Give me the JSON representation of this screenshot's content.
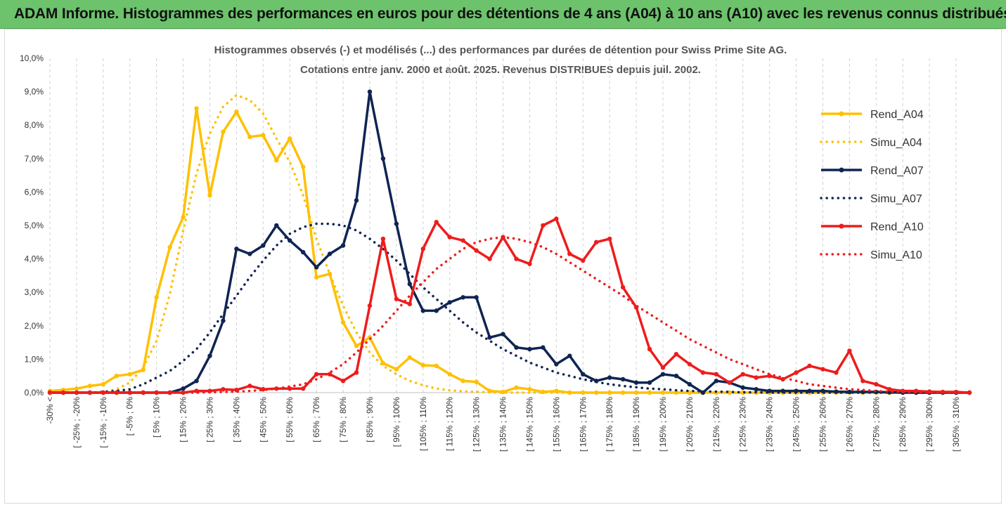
{
  "header": {
    "title": "ADAM Informe. Histogrammes des performances en euros pour des détentions de 4 ans (A04) à 10 ans (A10) avec les revenus connus distribués"
  },
  "chart_data": {
    "type": "line",
    "title_lines": [
      "Histogrammes observés (-) et modélisés (...) des performances par durées de détention pour Swiss Prime Site AG.",
      "Cotations entre janv. 2000 et août. 2025. Revenus DISTRIBUES depuis juil. 2002."
    ],
    "xlabel": "",
    "ylabel": "",
    "ylim": [
      0,
      10
    ],
    "yticks": [
      "0,0%",
      "1,0%",
      "2,0%",
      "3,0%",
      "4,0%",
      "5,0%",
      "6,0%",
      "7,0%",
      "8,0%",
      "9,0%",
      "10,0%"
    ],
    "x_labels": [
      "-30% <",
      "[ -25% ; -20%",
      "[ -15% ; -10%",
      "[ -5% ; 0%",
      "[ 5% ; 10%",
      "[ 15% ; 20%",
      "[ 25% ; 30%",
      "[ 35% ; 40%",
      "[ 45% ; 50%",
      "[ 55% ; 60%",
      "[ 65% ; 70%",
      "[ 75% ; 80%",
      "[ 85% ; 90%",
      "[ 95% ; 100%",
      "[ 105% ; 110%",
      "[ 115% ; 120%",
      "[ 125% ; 130%",
      "[ 135% ; 140%",
      "[ 145% ; 150%",
      "[ 155% ; 160%",
      "[ 165% ; 170%",
      "[ 175% ; 180%",
      "[ 185% ; 190%",
      "[ 195% ; 200%",
      "[ 205% ; 210%",
      "[ 215% ; 220%",
      "[ 225% ; 230%",
      "[ 235% ; 240%",
      "[ 245% ; 250%",
      "[ 255% ; 260%",
      "[ 265% ; 270%",
      "[ 275% ; 280%",
      "[ 285% ; 290%",
      "[ 295% ; 300%",
      "[ 305% ; 310%"
    ],
    "x_label_every": 2,
    "num_points": 70,
    "grid": "vertical-dashed",
    "legend_position": "right",
    "series": [
      {
        "name": "Rend_A04",
        "color": "#ffc000",
        "style": "solid",
        "values": [
          0.05,
          0.08,
          0.12,
          0.2,
          0.25,
          0.5,
          0.55,
          0.68,
          2.85,
          4.35,
          5.25,
          8.5,
          5.9,
          7.8,
          8.4,
          7.65,
          7.7,
          6.95,
          7.6,
          6.75,
          3.45,
          3.55,
          2.1,
          1.4,
          1.65,
          0.88,
          0.7,
          1.05,
          0.82,
          0.8,
          0.55,
          0.35,
          0.32,
          0.05,
          0.02,
          0.15,
          0.1,
          0.02,
          0.05,
          0,
          0,
          0,
          0,
          0,
          0,
          0,
          0,
          0,
          0,
          0,
          0,
          0,
          0,
          0,
          0,
          0,
          0,
          0,
          0,
          0,
          0,
          0,
          0,
          0,
          0,
          0,
          0,
          0,
          0,
          0
        ]
      },
      {
        "name": "Simu_A04",
        "color": "#ffc000",
        "style": "dotted",
        "values": [
          0,
          0,
          0,
          0,
          0.02,
          0.1,
          0.3,
          0.75,
          1.55,
          2.95,
          4.85,
          6.55,
          7.75,
          8.55,
          8.9,
          8.75,
          8.35,
          7.6,
          6.9,
          5.9,
          4.6,
          3.55,
          2.6,
          1.8,
          1.2,
          0.8,
          0.55,
          0.35,
          0.22,
          0.12,
          0.07,
          0.04,
          0.02,
          0.01,
          0,
          0,
          0,
          0,
          0,
          0,
          0,
          0,
          0,
          0,
          0,
          0,
          0,
          0,
          0,
          0,
          0,
          0,
          0,
          0,
          0,
          0,
          0,
          0,
          0,
          0,
          0,
          0,
          0,
          0,
          0,
          0,
          0,
          0,
          0,
          0
        ]
      },
      {
        "name": "Rend_A07",
        "color": "#0f2552",
        "style": "solid",
        "values": [
          0,
          0,
          0,
          0,
          0,
          0,
          0,
          0,
          0,
          0,
          0.12,
          0.35,
          1.1,
          2.15,
          4.3,
          4.15,
          4.4,
          5.0,
          4.55,
          4.2,
          3.75,
          4.15,
          4.4,
          5.75,
          9.0,
          7.0,
          5.05,
          3.25,
          2.45,
          2.45,
          2.7,
          2.85,
          2.85,
          1.65,
          1.75,
          1.35,
          1.3,
          1.35,
          0.85,
          1.1,
          0.55,
          0.35,
          0.45,
          0.4,
          0.3,
          0.3,
          0.55,
          0.5,
          0.25,
          0,
          0.35,
          0.3,
          0.15,
          0.1,
          0.05,
          0.05,
          0.05,
          0.05,
          0.05,
          0.03,
          0.02,
          0.02,
          0.02,
          0.01,
          0,
          0,
          0,
          0,
          0,
          0
        ]
      },
      {
        "name": "Simu_A07",
        "color": "#0f2552",
        "style": "dotted",
        "values": [
          0,
          0,
          0,
          0,
          0.02,
          0.05,
          0.1,
          0.25,
          0.45,
          0.65,
          0.95,
          1.3,
          1.8,
          2.35,
          2.9,
          3.45,
          3.95,
          4.4,
          4.75,
          4.95,
          5.05,
          5.05,
          5.0,
          4.85,
          4.6,
          4.3,
          3.95,
          3.55,
          3.15,
          2.8,
          2.45,
          2.1,
          1.8,
          1.55,
          1.3,
          1.1,
          0.9,
          0.75,
          0.6,
          0.5,
          0.4,
          0.32,
          0.25,
          0.2,
          0.16,
          0.12,
          0.1,
          0.07,
          0.05,
          0.04,
          0.03,
          0.02,
          0.01,
          0.01,
          0,
          0,
          0,
          0,
          0,
          0,
          0,
          0,
          0,
          0,
          0,
          0,
          0,
          0,
          0,
          0
        ]
      },
      {
        "name": "Rend_A10",
        "color": "#ee1c1c",
        "style": "solid",
        "values": [
          0,
          0,
          0,
          0,
          0,
          0,
          0,
          0,
          0,
          0,
          0,
          0.05,
          0.05,
          0.1,
          0.08,
          0.2,
          0.1,
          0.12,
          0.12,
          0.12,
          0.55,
          0.55,
          0.35,
          0.6,
          2.6,
          4.6,
          2.8,
          2.65,
          4.3,
          5.1,
          4.65,
          4.55,
          4.25,
          4.0,
          4.65,
          4.0,
          3.85,
          5.0,
          5.2,
          4.15,
          3.95,
          4.5,
          4.6,
          3.15,
          2.55,
          1.3,
          0.75,
          1.15,
          0.85,
          0.6,
          0.55,
          0.3,
          0.55,
          0.45,
          0.5,
          0.4,
          0.6,
          0.8,
          0.7,
          0.6,
          1.25,
          0.35,
          0.25,
          0.1,
          0.05,
          0.05,
          0.03,
          0.02,
          0.02,
          0
        ]
      },
      {
        "name": "Simu_A10",
        "color": "#ee1c1c",
        "style": "dotted",
        "values": [
          0,
          0,
          0,
          0,
          0,
          0,
          0,
          0,
          0,
          0,
          0,
          0,
          0.01,
          0.02,
          0.03,
          0.05,
          0.08,
          0.12,
          0.18,
          0.25,
          0.4,
          0.6,
          0.85,
          1.2,
          1.6,
          2.0,
          2.45,
          2.9,
          3.3,
          3.7,
          4.0,
          4.3,
          4.5,
          4.6,
          4.65,
          4.6,
          4.5,
          4.35,
          4.15,
          3.9,
          3.65,
          3.4,
          3.15,
          2.9,
          2.6,
          2.35,
          2.1,
          1.85,
          1.6,
          1.4,
          1.2,
          1.0,
          0.85,
          0.7,
          0.55,
          0.45,
          0.35,
          0.25,
          0.2,
          0.15,
          0.1,
          0.08,
          0.05,
          0.03,
          0.02,
          0.01,
          0.01,
          0,
          0,
          0
        ]
      }
    ]
  }
}
